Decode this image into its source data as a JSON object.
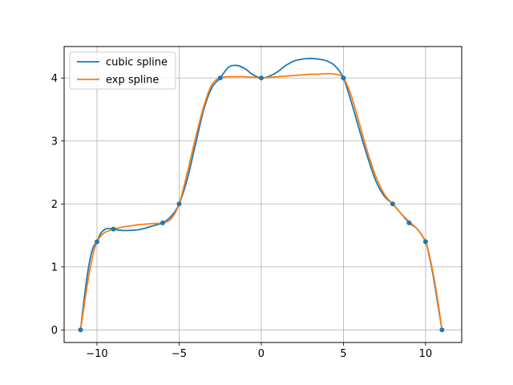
{
  "chart_data": {
    "type": "line",
    "title": "",
    "xlabel": "",
    "ylabel": "",
    "xlim": [
      -12,
      12.2
    ],
    "ylim": [
      -0.2,
      4.5
    ],
    "xticks": [
      -10,
      -5,
      0,
      5,
      10
    ],
    "yticks": [
      0,
      1,
      2,
      3,
      4
    ],
    "xtick_labels": [
      "−10",
      "−5",
      "0",
      "5",
      "10"
    ],
    "ytick_labels": [
      "0",
      "1",
      "2",
      "3",
      "4"
    ],
    "grid": true,
    "legend_position": "top-left",
    "knots": {
      "x": [
        -11,
        -10,
        -9,
        -6,
        -5,
        -2.5,
        0,
        5,
        8,
        9,
        10,
        11
      ],
      "y": [
        0,
        1.4,
        1.6,
        1.7,
        2,
        4,
        4,
        4,
        2,
        1.7,
        1.4,
        0
      ],
      "color": "#1f77b4"
    },
    "series": [
      {
        "name": "cubic spline",
        "color": "#1f77b4",
        "x": [
          -11,
          -10.8,
          -10.6,
          -10.4,
          -10.2,
          -10,
          -9.8,
          -9.5,
          -9.2,
          -9,
          -8.5,
          -8,
          -7.5,
          -7,
          -6.5,
          -6,
          -5.5,
          -5,
          -4.5,
          -4,
          -3.5,
          -3,
          -2.5,
          -2,
          -1.5,
          -1,
          -0.5,
          0,
          0.5,
          1,
          1.5,
          2,
          2.5,
          3,
          3.5,
          4,
          4.5,
          5,
          5.5,
          6,
          6.5,
          7,
          7.5,
          8,
          8.5,
          9,
          9.5,
          10,
          10.2,
          10.4,
          10.6,
          10.8,
          11
        ],
        "y": [
          0,
          0.45,
          0.85,
          1.15,
          1.33,
          1.4,
          1.52,
          1.6,
          1.61,
          1.6,
          1.58,
          1.58,
          1.59,
          1.62,
          1.66,
          1.7,
          1.8,
          2.0,
          2.4,
          2.95,
          3.5,
          3.85,
          4.0,
          4.17,
          4.2,
          4.15,
          4.05,
          4.0,
          4.03,
          4.1,
          4.2,
          4.27,
          4.3,
          4.31,
          4.3,
          4.27,
          4.19,
          4.0,
          3.6,
          3.15,
          2.72,
          2.35,
          2.12,
          2.0,
          1.85,
          1.7,
          1.6,
          1.4,
          1.2,
          0.95,
          0.65,
          0.32,
          0
        ]
      },
      {
        "name": "exp spline",
        "color": "#ff7f0e",
        "x": [
          -11,
          -10.8,
          -10.6,
          -10.4,
          -10.2,
          -10,
          -9.8,
          -9.5,
          -9.2,
          -9,
          -8.5,
          -8,
          -7.5,
          -7,
          -6.5,
          -6,
          -5.5,
          -5,
          -4.5,
          -4,
          -3.5,
          -3,
          -2.5,
          -2,
          -1.5,
          -1,
          -0.5,
          0,
          0.5,
          1,
          1.5,
          2,
          2.5,
          3,
          3.5,
          4,
          4.5,
          5,
          5.5,
          6,
          6.5,
          7,
          7.5,
          8,
          8.5,
          9,
          9.5,
          10,
          10.2,
          10.4,
          10.6,
          10.8,
          11
        ],
        "y": [
          0,
          0.35,
          0.7,
          1.0,
          1.24,
          1.4,
          1.48,
          1.55,
          1.58,
          1.6,
          1.63,
          1.65,
          1.67,
          1.68,
          1.69,
          1.7,
          1.76,
          2.0,
          2.5,
          3.05,
          3.55,
          3.9,
          4.0,
          4.02,
          4.02,
          4.02,
          4.01,
          4.0,
          4.01,
          4.02,
          4.03,
          4.04,
          4.05,
          4.06,
          4.06,
          4.07,
          4.06,
          4.0,
          3.7,
          3.25,
          2.8,
          2.42,
          2.15,
          2.0,
          1.85,
          1.72,
          1.6,
          1.4,
          1.22,
          0.98,
          0.7,
          0.36,
          0
        ]
      }
    ]
  }
}
